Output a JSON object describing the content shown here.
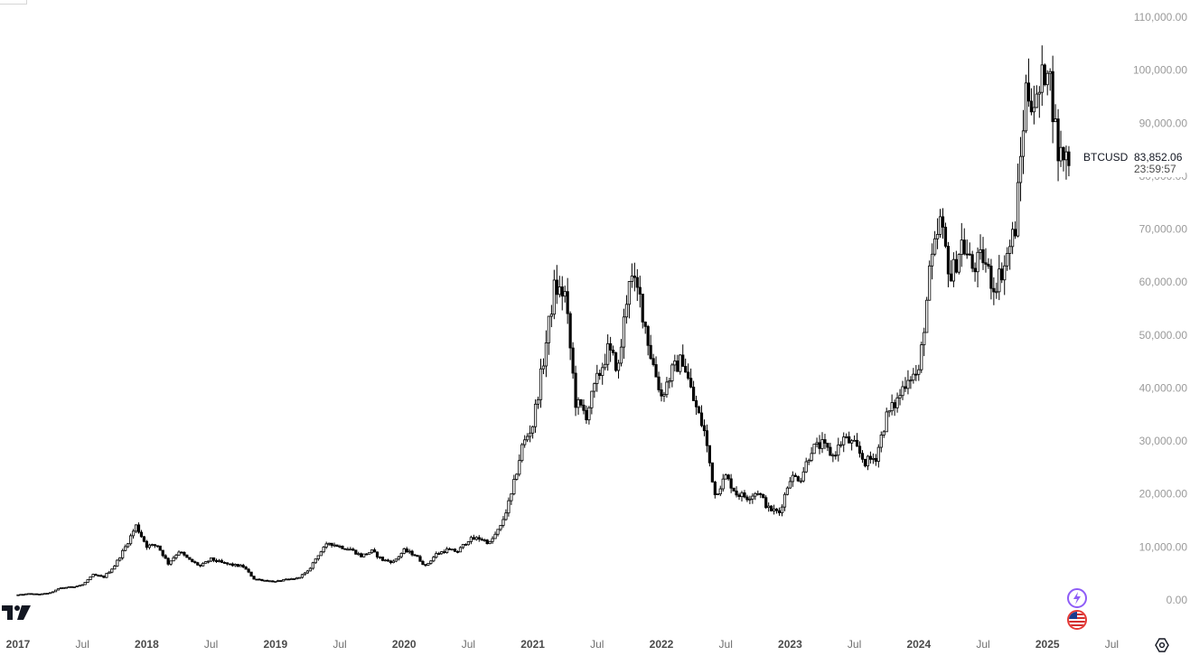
{
  "chart_data": {
    "type": "candlestick",
    "symbol": "BTCUSD",
    "last_price": "83,852.06",
    "countdown": "23:59:57",
    "ylim": [
      0,
      110000
    ],
    "y_ticks": [
      "110,000.00",
      "100,000.00",
      "90,000.00",
      "80,000.00",
      "70,000.00",
      "60,000.00",
      "50,000.00",
      "40,000.00",
      "30,000.00",
      "20,000.00",
      "10,000.00",
      "0.00"
    ],
    "x_ticks": [
      {
        "label": "2017",
        "year": true
      },
      {
        "label": "Jul",
        "year": false
      },
      {
        "label": "2018",
        "year": true
      },
      {
        "label": "Jul",
        "year": false
      },
      {
        "label": "2019",
        "year": true
      },
      {
        "label": "Jul",
        "year": false
      },
      {
        "label": "2020",
        "year": true
      },
      {
        "label": "Jul",
        "year": false
      },
      {
        "label": "2021",
        "year": true
      },
      {
        "label": "Jul",
        "year": false
      },
      {
        "label": "2022",
        "year": true
      },
      {
        "label": "Jul",
        "year": false
      },
      {
        "label": "2023",
        "year": true
      },
      {
        "label": "Jul",
        "year": false
      },
      {
        "label": "2024",
        "year": true
      },
      {
        "label": "Jul",
        "year": false
      },
      {
        "label": "2025",
        "year": true
      },
      {
        "label": "Jul",
        "year": false
      }
    ],
    "x_range": [
      "2017-01",
      "2025-07"
    ],
    "series_close": [
      [
        "2017-01",
        970
      ],
      [
        "2017-02",
        1190
      ],
      [
        "2017-03",
        1080
      ],
      [
        "2017-04",
        1350
      ],
      [
        "2017-05",
        2300
      ],
      [
        "2017-06",
        2480
      ],
      [
        "2017-07",
        2870
      ],
      [
        "2017-08",
        4700
      ],
      [
        "2017-09",
        4340
      ],
      [
        "2017-10",
        6470
      ],
      [
        "2017-11",
        10000
      ],
      [
        "2017-12",
        14000
      ],
      [
        "2018-01",
        10200
      ],
      [
        "2018-02",
        10300
      ],
      [
        "2018-03",
        6900
      ],
      [
        "2018-04",
        9200
      ],
      [
        "2018-05",
        7500
      ],
      [
        "2018-06",
        6400
      ],
      [
        "2018-07",
        7700
      ],
      [
        "2018-08",
        7000
      ],
      [
        "2018-09",
        6600
      ],
      [
        "2018-10",
        6300
      ],
      [
        "2018-11",
        4000
      ],
      [
        "2018-12",
        3700
      ],
      [
        "2019-01",
        3450
      ],
      [
        "2019-02",
        3820
      ],
      [
        "2019-03",
        4100
      ],
      [
        "2019-04",
        5300
      ],
      [
        "2019-05",
        8600
      ],
      [
        "2019-06",
        10800
      ],
      [
        "2019-07",
        10100
      ],
      [
        "2019-08",
        9600
      ],
      [
        "2019-09",
        8300
      ],
      [
        "2019-10",
        9200
      ],
      [
        "2019-11",
        7550
      ],
      [
        "2019-12",
        7200
      ],
      [
        "2020-01",
        9350
      ],
      [
        "2020-02",
        8550
      ],
      [
        "2020-03",
        6400
      ],
      [
        "2020-04",
        8650
      ],
      [
        "2020-05",
        9450
      ],
      [
        "2020-06",
        9150
      ],
      [
        "2020-07",
        11350
      ],
      [
        "2020-08",
        11650
      ],
      [
        "2020-09",
        10780
      ],
      [
        "2020-10",
        13800
      ],
      [
        "2020-11",
        19700
      ],
      [
        "2020-12",
        28900
      ],
      [
        "2021-01",
        33100
      ],
      [
        "2021-02",
        45200
      ],
      [
        "2021-03",
        58800
      ],
      [
        "2021-04",
        57700
      ],
      [
        "2021-05",
        37300
      ],
      [
        "2021-06",
        35000
      ],
      [
        "2021-07",
        41500
      ],
      [
        "2021-08",
        47100
      ],
      [
        "2021-09",
        43800
      ],
      [
        "2021-10",
        61300
      ],
      [
        "2021-11",
        57000
      ],
      [
        "2021-12",
        46300
      ],
      [
        "2022-01",
        38500
      ],
      [
        "2022-02",
        43200
      ],
      [
        "2022-03",
        45500
      ],
      [
        "2022-04",
        37700
      ],
      [
        "2022-05",
        31800
      ],
      [
        "2022-06",
        19900
      ],
      [
        "2022-07",
        23300
      ],
      [
        "2022-08",
        20100
      ],
      [
        "2022-09",
        19400
      ],
      [
        "2022-10",
        20500
      ],
      [
        "2022-11",
        17200
      ],
      [
        "2022-12",
        16500
      ],
      [
        "2023-01",
        23100
      ],
      [
        "2023-02",
        23100
      ],
      [
        "2023-03",
        28500
      ],
      [
        "2023-04",
        29300
      ],
      [
        "2023-05",
        27200
      ],
      [
        "2023-06",
        30500
      ],
      [
        "2023-07",
        29200
      ],
      [
        "2023-08",
        26000
      ],
      [
        "2023-09",
        27000
      ],
      [
        "2023-10",
        34700
      ],
      [
        "2023-11",
        37700
      ],
      [
        "2023-12",
        42300
      ],
      [
        "2024-01",
        42600
      ],
      [
        "2024-02",
        61200
      ],
      [
        "2024-03",
        71300
      ],
      [
        "2024-04",
        60700
      ],
      [
        "2024-05",
        67500
      ],
      [
        "2024-06",
        62700
      ],
      [
        "2024-07",
        64600
      ],
      [
        "2024-08",
        59000
      ],
      [
        "2024-09",
        63300
      ],
      [
        "2024-10",
        70300
      ],
      [
        "2024-11",
        96400
      ],
      [
        "2024-12",
        93400
      ],
      [
        "2025-01",
        102400
      ],
      [
        "2025-02",
        84400
      ],
      [
        "2025-03",
        83852
      ]
    ]
  },
  "icons": {
    "logo": "tradingview-logo",
    "spark": "spark-icon",
    "flag": "us-flag-icon",
    "settings": "settings-icon"
  },
  "colors": {
    "candle": "#000000",
    "text_axis": "#9a9a9a"
  }
}
